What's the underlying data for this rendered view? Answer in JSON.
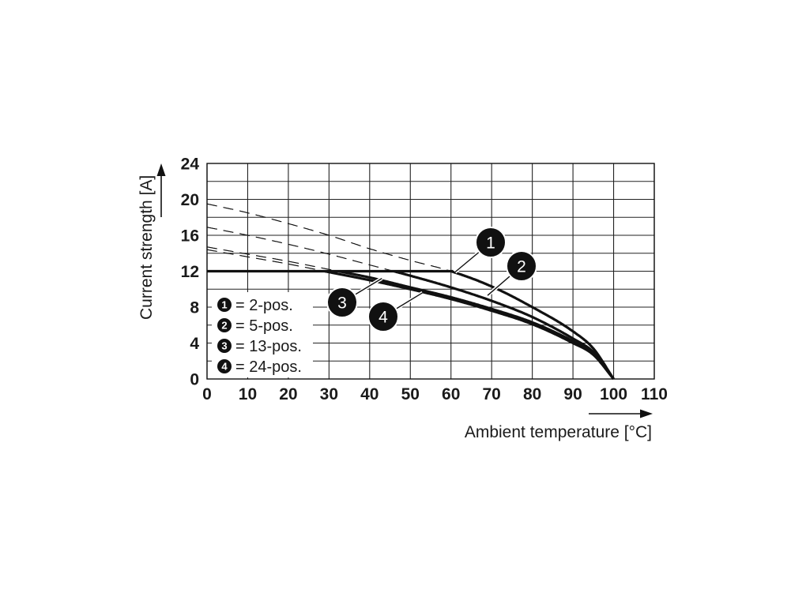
{
  "chart_data": {
    "type": "line",
    "xlabel": "Ambient temperature [°C]",
    "ylabel": "Current strength [A]",
    "xlim": [
      0,
      110
    ],
    "ylim": [
      0,
      24
    ],
    "x_ticks": [
      "0",
      "10",
      "20",
      "30",
      "40",
      "50",
      "60",
      "70",
      "80",
      "90",
      "100",
      "110"
    ],
    "y_ticks": [
      "0",
      "4",
      "8",
      "12",
      "16",
      "20",
      "24"
    ],
    "grid": true,
    "legend_placement": "bottom-left",
    "colors": {
      "line": "#111111",
      "badge": "#111111",
      "grid": "#222222"
    },
    "derating_limit": {
      "current": 12,
      "x_end": 60.5
    },
    "series": [
      {
        "badge": "1",
        "name": "= 2-pos.",
        "x": [
          0,
          10,
          20,
          30,
          40,
          50,
          60,
          70,
          80,
          90,
          95,
          100
        ],
        "y": [
          19.5,
          18.5,
          17.3,
          16.0,
          14.5,
          13.2,
          12.0,
          10.3,
          8.0,
          5.3,
          3.4,
          0
        ]
      },
      {
        "badge": "2",
        "name": "= 5-pos.",
        "x": [
          0,
          10,
          20,
          30,
          40,
          50,
          60,
          70,
          80,
          90,
          95,
          100
        ],
        "y": [
          16.9,
          16.0,
          15.0,
          13.9,
          12.7,
          11.5,
          10.2,
          8.7,
          6.9,
          4.5,
          3.0,
          0
        ]
      },
      {
        "badge": "3",
        "name": "= 13-pos.",
        "x": [
          0,
          10,
          20,
          30,
          40,
          50,
          60,
          70,
          80,
          90,
          95,
          100
        ],
        "y": [
          14.7,
          13.9,
          13.1,
          12.2,
          11.3,
          10.2,
          9.1,
          7.8,
          6.3,
          4.2,
          2.8,
          0
        ]
      },
      {
        "badge": "4",
        "name": "= 24-pos.",
        "x": [
          0,
          10,
          20,
          30,
          40,
          50,
          60,
          70,
          80,
          90,
          95,
          100
        ],
        "y": [
          14.4,
          13.6,
          12.8,
          11.9,
          11.0,
          10.0,
          8.9,
          7.6,
          6.1,
          4.0,
          2.7,
          0
        ]
      }
    ],
    "callouts": [
      {
        "label": "1",
        "points_to": [
          61,
          11.9
        ]
      },
      {
        "label": "2",
        "points_to": [
          69,
          9.3
        ]
      },
      {
        "label": "3",
        "points_to": [
          43,
          11.2
        ]
      },
      {
        "label": "4",
        "points_to": [
          53,
          9.6
        ]
      }
    ]
  }
}
